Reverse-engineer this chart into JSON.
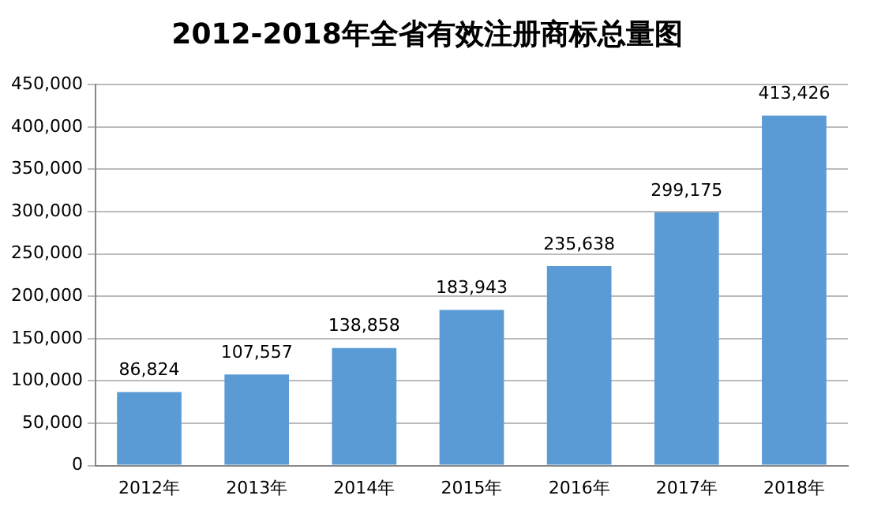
{
  "chart_data": {
    "type": "bar",
    "title": "2012-2018年全省有效注册商标总量图",
    "categories": [
      "2012年",
      "2013年",
      "2014年",
      "2015年",
      "2016年",
      "2017年",
      "2018年"
    ],
    "values": [
      86824,
      107557,
      138858,
      183943,
      235638,
      299175,
      413426
    ],
    "value_labels": [
      "86,824",
      "107,557",
      "138,858",
      "183,943",
      "235,638",
      "299,175",
      "413,426"
    ],
    "color": "#5b9bd5",
    "ylim": [
      0,
      450000
    ],
    "yticks": [
      0,
      {
        "value": 50000,
        "label": "50,000"
      },
      {
        "value": 100000,
        "label": "100,000"
      },
      {
        "value": 150000,
        "label": "150,000"
      },
      {
        "value": 200000,
        "label": "200,000"
      },
      {
        "value": 250000,
        "label": "250,000"
      },
      {
        "value": 300000,
        "label": "300,000"
      },
      {
        "value": 350000,
        "label": "350,000"
      },
      {
        "value": 400000,
        "label": "400,000"
      },
      {
        "value": 450000,
        "label": "450,000"
      }
    ],
    "grid": "y",
    "legend": false
  }
}
